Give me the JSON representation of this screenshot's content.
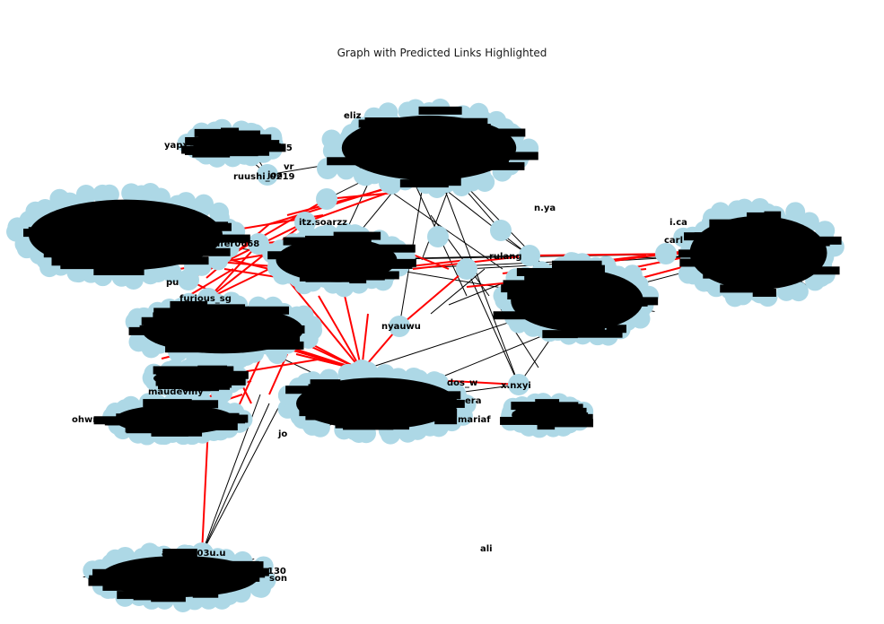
{
  "figure": {
    "title": "Graph with Predicted Links Highlighted"
  },
  "colors": {
    "node_fill": "#add8e6",
    "edge": "#000000",
    "predicted_edge": "#ff0000",
    "label": "#000000",
    "background": "#ffffff"
  },
  "legible_node_labels": [
    "ruushi_0219",
    "itz.soarzz",
    "x.nxyi",
    "andy_503u.u",
    "maudevmy",
    "furious_sg",
    "halfer0668",
    "nyauwu",
    "joa",
    "vr",
    "eliz",
    "ohwny",
    "rulang",
    "yapx",
    "i.ca",
    "carl",
    "jo",
    "pu",
    "ali",
    "n.ya",
    "dos_w",
    "mariaf",
    "era",
    "son",
    "130",
    "505"
  ]
}
